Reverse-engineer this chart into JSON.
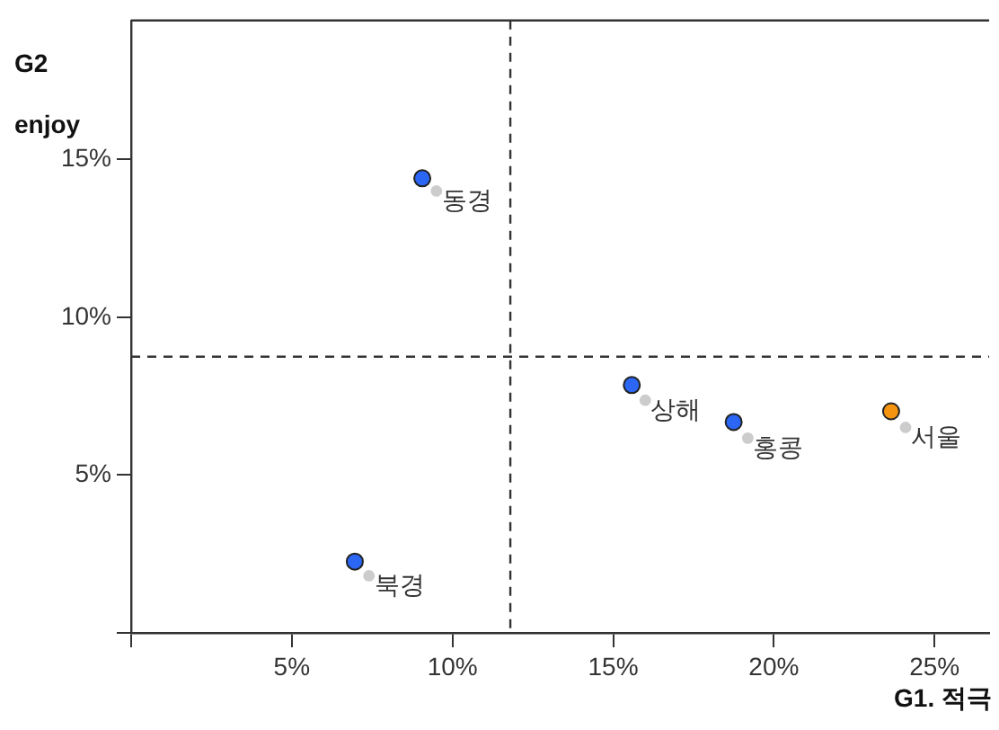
{
  "chart_data": {
    "type": "scatter",
    "xlabel": "G1. 적극",
    "ylabel": "G2 enjoy",
    "series": [
      {
        "x": [
          9.06,
          6.96,
          15.58,
          18.75,
          23.65
        ],
        "values": [
          14.4,
          2.26,
          7.85,
          6.68,
          7.02
        ],
        "colors": [
          "#2b66f5",
          "#2b66f5",
          "#2b66f5",
          "#2b66f5",
          "#f5940f"
        ]
      },
      {
        "x": [
          9.5,
          7.4,
          16.0,
          19.19,
          24.1
        ],
        "values": [
          14.0,
          1.81,
          7.37,
          6.17,
          6.51
        ],
        "color": "#cccccc"
      }
    ],
    "marker": "circle",
    "xlim": [
      0,
      26.7
    ],
    "ylim": [
      0,
      19.4
    ],
    "xticks": [
      {
        "value": 0,
        "label": null
      },
      {
        "value": 5,
        "label": "5%"
      },
      {
        "value": 10,
        "label": "10%"
      },
      {
        "value": 15,
        "label": "15%"
      },
      {
        "value": 20,
        "label": "20%"
      },
      {
        "value": 25,
        "label": "25%"
      }
    ],
    "yticks": [
      {
        "value": 0,
        "label": null
      },
      {
        "value": 5,
        "label": "5%"
      },
      {
        "value": 10,
        "label": "10%"
      },
      {
        "value": 15,
        "label": "15%"
      }
    ],
    "ref_lines": [
      {
        "axis": "x",
        "value": 11.8,
        "line_style": "dashed"
      },
      {
        "axis": "y",
        "value": 8.75,
        "line_style": "dashed"
      }
    ],
    "annotations": [
      {
        "text": "동경",
        "x": 9.5,
        "y": 14.0
      },
      {
        "text": "북경",
        "x": 7.4,
        "y": 1.81
      },
      {
        "text": "상해",
        "x": 16.0,
        "y": 7.37
      },
      {
        "text": "홍콩",
        "x": 19.19,
        "y": 6.17
      },
      {
        "text": "서울",
        "x": 24.1,
        "y": 6.51
      }
    ]
  }
}
